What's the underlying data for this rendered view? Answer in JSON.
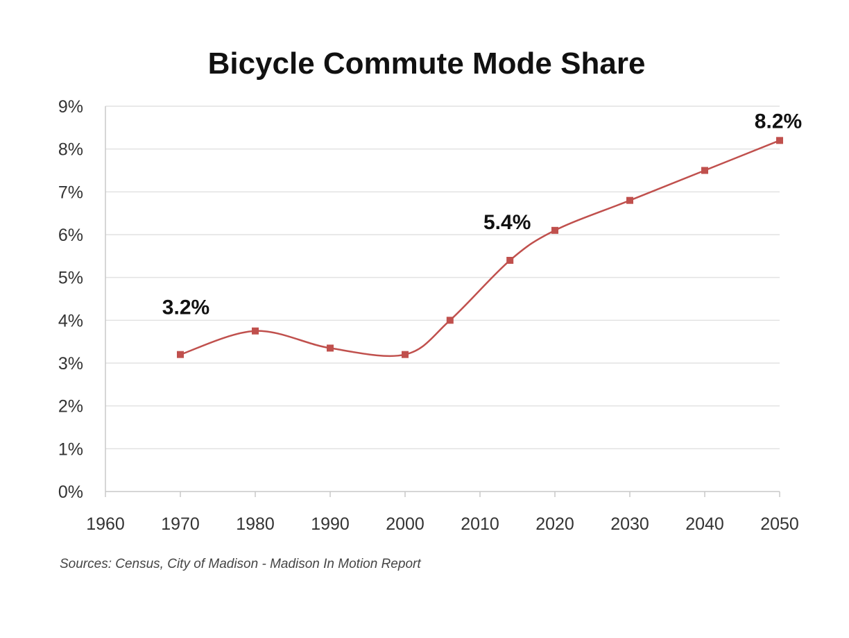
{
  "chart_data": {
    "type": "line",
    "title": "Bicycle Commute Mode Share",
    "xlabel": "",
    "ylabel": "",
    "xlim": [
      1960,
      2050
    ],
    "ylim": [
      0,
      9
    ],
    "x_ticks": [
      "1960",
      "1970",
      "1980",
      "1990",
      "2000",
      "2010",
      "2020",
      "2030",
      "2040",
      "2050"
    ],
    "y_ticks": [
      "0%",
      "1%",
      "2%",
      "3%",
      "4%",
      "5%",
      "6%",
      "7%",
      "8%",
      "9%"
    ],
    "grid": true,
    "legend": "none",
    "smoothed": true,
    "line_color": "#c0504d",
    "series": [
      {
        "x": [
          1970,
          1980,
          1990,
          2000,
          2006,
          2014,
          2020,
          2030,
          2040,
          2050
        ],
        "y": [
          3.2,
          3.75,
          3.35,
          3.2,
          4.0,
          5.4,
          6.1,
          6.8,
          7.5,
          8.2
        ]
      }
    ],
    "annotations": [
      {
        "text": "3.2%",
        "x": 1970,
        "y": 3.2,
        "position": "above"
      },
      {
        "text": "5.4%",
        "x": 2014,
        "y": 5.4,
        "position": "above-left"
      },
      {
        "text": "8.2%",
        "x": 2050,
        "y": 8.2,
        "position": "above"
      }
    ],
    "source_note": "Sources: Census, City of Madison - Madison In Motion Report"
  }
}
